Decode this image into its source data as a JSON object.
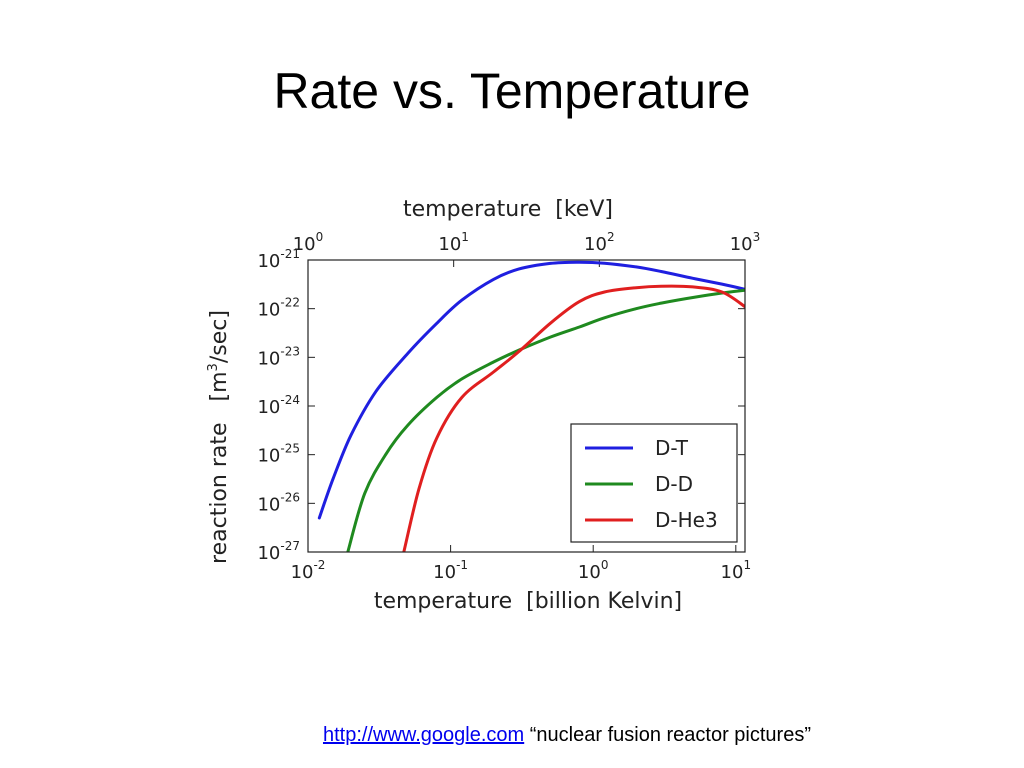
{
  "slide": {
    "title": "Rate vs. Temperature"
  },
  "caption": {
    "link_text": "http://www.google.com",
    "quote": "“nuclear fusion reactor pictures”"
  },
  "chart_data": {
    "type": "line",
    "xscale": "log",
    "yscale": "log",
    "xlabel": "temperature  [billion Kelvin]",
    "x2label": "temperature  [keV]",
    "ylabel": "reaction rate   [m3/sec]",
    "xlim": [
      0.01,
      11.6
    ],
    "x2lim": [
      1,
      1000
    ],
    "ylim": [
      1e-27,
      1e-21
    ],
    "x_ticks": [
      {
        "value": 0.01,
        "exp": "-2"
      },
      {
        "value": 0.1,
        "exp": "-1"
      },
      {
        "value": 1,
        "exp": "0"
      },
      {
        "value": 10,
        "exp": "1"
      }
    ],
    "x2_ticks": [
      {
        "value": 1,
        "exp": "0"
      },
      {
        "value": 10,
        "exp": "1"
      },
      {
        "value": 100,
        "exp": "2"
      },
      {
        "value": 1000,
        "exp": "3"
      }
    ],
    "y_ticks": [
      {
        "value": 1e-21,
        "exp": "-21"
      },
      {
        "value": 1e-22,
        "exp": "-22"
      },
      {
        "value": 1e-23,
        "exp": "-23"
      },
      {
        "value": 1e-24,
        "exp": "-24"
      },
      {
        "value": 1e-25,
        "exp": "-25"
      },
      {
        "value": 1e-26,
        "exp": "-26"
      },
      {
        "value": 1e-27,
        "exp": "-27"
      }
    ],
    "legend_position": "lower-right",
    "grid": false,
    "series": [
      {
        "name": "D-T",
        "color": "#1f1fe0",
        "x": [
          0.012,
          0.015,
          0.02,
          0.03,
          0.05,
          0.08,
          0.12,
          0.2,
          0.3,
          0.5,
          0.8,
          1.2,
          2,
          3,
          5,
          8,
          11.6
        ],
        "y": [
          5e-27,
          3.2e-26,
          2.5e-25,
          2e-24,
          1.2e-23,
          5e-23,
          1.5e-22,
          4e-22,
          6.5e-22,
          8.5e-22,
          9e-22,
          8.6e-22,
          7.2e-22,
          5.8e-22,
          4.2e-22,
          3.2e-22,
          2.5e-22
        ]
      },
      {
        "name": "D-D",
        "color": "#1f8a1f",
        "x": [
          0.019,
          0.025,
          0.035,
          0.05,
          0.08,
          0.12,
          0.2,
          0.3,
          0.5,
          0.8,
          1.2,
          2,
          3,
          5,
          8,
          11.6
        ],
        "y": [
          1e-27,
          1.6e-26,
          1e-25,
          4e-25,
          1.5e-24,
          3.6e-24,
          8e-24,
          1.4e-23,
          2.6e-23,
          4.2e-23,
          6.5e-23,
          1e-22,
          1.3e-22,
          1.7e-22,
          2.1e-22,
          2.4e-22
        ]
      },
      {
        "name": "D-He3",
        "color": "#e01f1f",
        "x": [
          0.047,
          0.06,
          0.08,
          0.12,
          0.2,
          0.3,
          0.5,
          0.8,
          1.2,
          2,
          3,
          5,
          8,
          11.6
        ],
        "y": [
          1e-27,
          2e-26,
          2.2e-25,
          1.5e-24,
          5e-24,
          1.3e-23,
          5e-23,
          1.4e-22,
          2.2e-22,
          2.7e-22,
          2.9e-22,
          2.8e-22,
          2.2e-22,
          1.1e-22
        ]
      }
    ]
  }
}
